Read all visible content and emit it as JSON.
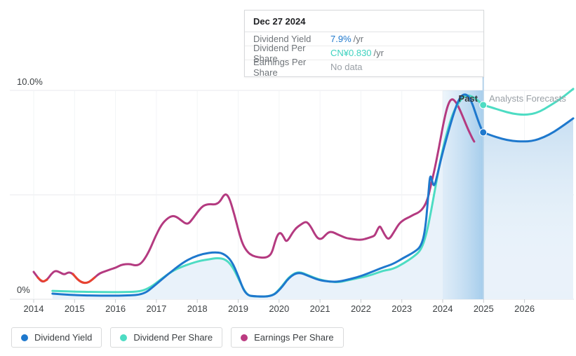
{
  "header_tooltip": {
    "date": "Dec 27 2024",
    "rows": [
      {
        "label": "Dividend Yield",
        "value": "7.9%",
        "suffix": "/yr",
        "value_color": "#1e78cd"
      },
      {
        "label": "Dividend Per Share",
        "value": "CN¥0.830",
        "suffix": "/yr",
        "value_color": "#3ed2bf"
      },
      {
        "label": "Earnings Per Share",
        "value": "No data",
        "suffix": "",
        "value_color": "#9aa0a6"
      }
    ]
  },
  "chart_data": {
    "type": "line",
    "x_ticks": [
      2014,
      2015,
      2016,
      2017,
      2018,
      2019,
      2020,
      2021,
      2022,
      2023,
      2024,
      2025,
      2026
    ],
    "y_axis": {
      "min": 0,
      "max": 10,
      "ticks": [
        {
          "value": 10,
          "label": "10.0%"
        },
        {
          "value": 5,
          "label": ""
        },
        {
          "value": 0,
          "label": "0%"
        }
      ]
    },
    "past_label": "Past",
    "forecast_label": "Analysts Forecasts",
    "divider_x": 2024.99,
    "highlight_band": [
      2024.0,
      2024.99
    ],
    "legend_position": "bottom",
    "grid": true,
    "series": [
      {
        "name": "Dividend Yield",
        "color": "#1e78cd",
        "unit": "% of yield axis",
        "points": [
          [
            2014.46,
            0.27
          ],
          [
            2014.89,
            0.2
          ],
          [
            2015.58,
            0.17
          ],
          [
            2016.26,
            0.17
          ],
          [
            2016.69,
            0.23
          ],
          [
            2016.95,
            0.64
          ],
          [
            2017.29,
            1.21
          ],
          [
            2017.64,
            1.74
          ],
          [
            2017.89,
            2.01
          ],
          [
            2018.15,
            2.18
          ],
          [
            2018.41,
            2.25
          ],
          [
            2018.63,
            2.21
          ],
          [
            2018.84,
            1.85
          ],
          [
            2019.01,
            1.07
          ],
          [
            2019.18,
            0.2
          ],
          [
            2019.44,
            0.13
          ],
          [
            2019.83,
            0.13
          ],
          [
            2020.04,
            0.5
          ],
          [
            2020.24,
            1.04
          ],
          [
            2020.47,
            1.31
          ],
          [
            2020.72,
            1.11
          ],
          [
            2020.98,
            0.91
          ],
          [
            2021.24,
            0.84
          ],
          [
            2021.46,
            0.84
          ],
          [
            2021.75,
            0.97
          ],
          [
            2022.01,
            1.11
          ],
          [
            2022.27,
            1.31
          ],
          [
            2022.56,
            1.54
          ],
          [
            2022.78,
            1.68
          ],
          [
            2023.04,
            1.98
          ],
          [
            2023.3,
            2.25
          ],
          [
            2023.47,
            2.52
          ],
          [
            2023.57,
            3.26
          ],
          [
            2023.64,
            4.77
          ],
          [
            2023.69,
            6.01
          ],
          [
            2023.74,
            5.67
          ],
          [
            2023.79,
            5.37
          ],
          [
            2023.86,
            5.87
          ],
          [
            2023.98,
            6.88
          ],
          [
            2024.1,
            7.75
          ],
          [
            2024.24,
            8.72
          ],
          [
            2024.38,
            9.53
          ],
          [
            2024.5,
            9.83
          ],
          [
            2024.62,
            9.77
          ],
          [
            2024.72,
            9.4
          ],
          [
            2024.84,
            8.69
          ],
          [
            2024.93,
            8.22
          ],
          [
            2024.99,
            7.99
          ],
          [
            2025.18,
            7.85
          ],
          [
            2025.44,
            7.68
          ],
          [
            2025.7,
            7.58
          ],
          [
            2025.96,
            7.55
          ],
          [
            2026.21,
            7.58
          ],
          [
            2026.47,
            7.75
          ],
          [
            2026.73,
            8.02
          ],
          [
            2026.98,
            8.36
          ],
          [
            2027.19,
            8.66
          ]
        ]
      },
      {
        "name": "Dividend Per Share",
        "color": "#4ddcc3",
        "unit": "normalized to yield axis",
        "points": [
          [
            2014.46,
            0.4
          ],
          [
            2014.89,
            0.37
          ],
          [
            2015.58,
            0.34
          ],
          [
            2016.26,
            0.34
          ],
          [
            2016.61,
            0.37
          ],
          [
            2016.86,
            0.57
          ],
          [
            2017.12,
            0.97
          ],
          [
            2017.38,
            1.34
          ],
          [
            2017.6,
            1.54
          ],
          [
            2017.84,
            1.71
          ],
          [
            2018.07,
            1.85
          ],
          [
            2018.29,
            1.91
          ],
          [
            2018.49,
            1.98
          ],
          [
            2018.7,
            1.91
          ],
          [
            2018.87,
            1.54
          ],
          [
            2019.04,
            0.84
          ],
          [
            2019.21,
            0.2
          ],
          [
            2019.39,
            0.13
          ],
          [
            2019.83,
            0.13
          ],
          [
            2020.04,
            0.54
          ],
          [
            2020.24,
            1.07
          ],
          [
            2020.47,
            1.34
          ],
          [
            2020.72,
            1.14
          ],
          [
            2020.98,
            0.94
          ],
          [
            2021.24,
            0.84
          ],
          [
            2021.46,
            0.81
          ],
          [
            2021.75,
            0.94
          ],
          [
            2022.01,
            1.04
          ],
          [
            2022.27,
            1.17
          ],
          [
            2022.56,
            1.38
          ],
          [
            2022.78,
            1.44
          ],
          [
            2023.04,
            1.71
          ],
          [
            2023.3,
            2.05
          ],
          [
            2023.47,
            2.35
          ],
          [
            2023.6,
            3.09
          ],
          [
            2023.72,
            4.26
          ],
          [
            2023.83,
            5.47
          ],
          [
            2023.95,
            6.74
          ],
          [
            2024.07,
            7.75
          ],
          [
            2024.21,
            8.69
          ],
          [
            2024.33,
            9.23
          ],
          [
            2024.46,
            9.6
          ],
          [
            2024.58,
            9.77
          ],
          [
            2024.7,
            9.73
          ],
          [
            2024.84,
            9.56
          ],
          [
            2024.99,
            9.3
          ],
          [
            2025.18,
            9.19
          ],
          [
            2025.44,
            9.03
          ],
          [
            2025.7,
            8.89
          ],
          [
            2025.96,
            8.83
          ],
          [
            2026.18,
            8.86
          ],
          [
            2026.38,
            8.99
          ],
          [
            2026.59,
            9.23
          ],
          [
            2026.81,
            9.5
          ],
          [
            2027.0,
            9.77
          ],
          [
            2027.19,
            10.07
          ]
        ]
      },
      {
        "name": "Earnings Per Share",
        "color": "#b43a80",
        "unit": "normalized to yield axis",
        "points": [
          [
            2014.0,
            1.31
          ],
          [
            2014.1,
            1.04
          ],
          [
            2014.21,
            0.81
          ],
          [
            2014.33,
            0.94
          ],
          [
            2014.43,
            1.21
          ],
          [
            2014.53,
            1.38
          ],
          [
            2014.65,
            1.28
          ],
          [
            2014.75,
            1.17
          ],
          [
            2014.86,
            1.31
          ],
          [
            2014.96,
            1.21
          ],
          [
            2015.06,
            0.97
          ],
          [
            2015.17,
            0.81
          ],
          [
            2015.29,
            0.77
          ],
          [
            2015.39,
            0.87
          ],
          [
            2015.49,
            1.04
          ],
          [
            2015.61,
            1.24
          ],
          [
            2015.75,
            1.34
          ],
          [
            2015.89,
            1.44
          ],
          [
            2016.01,
            1.51
          ],
          [
            2016.13,
            1.64
          ],
          [
            2016.25,
            1.68
          ],
          [
            2016.37,
            1.68
          ],
          [
            2016.49,
            1.61
          ],
          [
            2016.61,
            1.68
          ],
          [
            2016.73,
            1.98
          ],
          [
            2016.85,
            2.42
          ],
          [
            2016.98,
            3.02
          ],
          [
            2017.12,
            3.56
          ],
          [
            2017.26,
            3.86
          ],
          [
            2017.38,
            3.99
          ],
          [
            2017.48,
            3.96
          ],
          [
            2017.6,
            3.79
          ],
          [
            2017.71,
            3.62
          ],
          [
            2017.79,
            3.62
          ],
          [
            2017.89,
            3.86
          ],
          [
            2018.0,
            4.16
          ],
          [
            2018.1,
            4.4
          ],
          [
            2018.2,
            4.53
          ],
          [
            2018.32,
            4.56
          ],
          [
            2018.44,
            4.53
          ],
          [
            2018.55,
            4.66
          ],
          [
            2018.65,
            5.0
          ],
          [
            2018.72,
            5.03
          ],
          [
            2018.8,
            4.77
          ],
          [
            2018.91,
            4.03
          ],
          [
            2019.01,
            3.26
          ],
          [
            2019.11,
            2.62
          ],
          [
            2019.23,
            2.25
          ],
          [
            2019.35,
            2.08
          ],
          [
            2019.49,
            2.01
          ],
          [
            2019.63,
            1.98
          ],
          [
            2019.75,
            2.05
          ],
          [
            2019.83,
            2.25
          ],
          [
            2019.9,
            2.75
          ],
          [
            2019.97,
            3.12
          ],
          [
            2020.04,
            3.19
          ],
          [
            2020.11,
            2.99
          ],
          [
            2020.17,
            2.75
          ],
          [
            2020.24,
            2.89
          ],
          [
            2020.33,
            3.19
          ],
          [
            2020.42,
            3.42
          ],
          [
            2020.52,
            3.56
          ],
          [
            2020.62,
            3.69
          ],
          [
            2020.69,
            3.69
          ],
          [
            2020.78,
            3.46
          ],
          [
            2020.88,
            3.09
          ],
          [
            2020.96,
            2.89
          ],
          [
            2021.05,
            2.89
          ],
          [
            2021.14,
            3.09
          ],
          [
            2021.22,
            3.22
          ],
          [
            2021.31,
            3.22
          ],
          [
            2021.41,
            3.12
          ],
          [
            2021.53,
            3.02
          ],
          [
            2021.65,
            2.92
          ],
          [
            2021.77,
            2.89
          ],
          [
            2021.91,
            2.85
          ],
          [
            2022.04,
            2.85
          ],
          [
            2022.16,
            2.92
          ],
          [
            2022.27,
            2.99
          ],
          [
            2022.34,
            3.05
          ],
          [
            2022.4,
            3.32
          ],
          [
            2022.46,
            3.52
          ],
          [
            2022.51,
            3.36
          ],
          [
            2022.58,
            3.09
          ],
          [
            2022.65,
            2.89
          ],
          [
            2022.71,
            2.92
          ],
          [
            2022.8,
            3.19
          ],
          [
            2022.89,
            3.49
          ],
          [
            2022.97,
            3.69
          ],
          [
            2023.07,
            3.83
          ],
          [
            2023.18,
            3.93
          ],
          [
            2023.3,
            4.06
          ],
          [
            2023.42,
            4.16
          ],
          [
            2023.54,
            4.4
          ],
          [
            2023.64,
            4.83
          ],
          [
            2023.72,
            5.54
          ],
          [
            2023.81,
            6.28
          ],
          [
            2023.91,
            7.28
          ],
          [
            2024.01,
            8.36
          ],
          [
            2024.1,
            9.13
          ],
          [
            2024.17,
            9.5
          ],
          [
            2024.24,
            9.6
          ],
          [
            2024.33,
            9.43
          ],
          [
            2024.43,
            9.03
          ],
          [
            2024.53,
            8.56
          ],
          [
            2024.63,
            8.09
          ],
          [
            2024.72,
            7.72
          ],
          [
            2024.77,
            7.55
          ]
        ]
      }
    ],
    "negative_eps_color": "#e8432f",
    "negative_eps_index_ranges": [
      [
        1,
        3
      ],
      [
        9,
        14
      ]
    ],
    "markers": [
      {
        "series": "Dividend Per Share",
        "x": 2024.99,
        "y": 9.3
      },
      {
        "series": "Dividend Yield",
        "x": 2024.99,
        "y": 7.99
      }
    ]
  },
  "legend": {
    "items": [
      {
        "label": "Dividend Yield",
        "color": "#1e78cd"
      },
      {
        "label": "Dividend Per Share",
        "color": "#4ddcc3"
      },
      {
        "label": "Earnings Per Share",
        "color": "#bb3b81"
      }
    ]
  }
}
